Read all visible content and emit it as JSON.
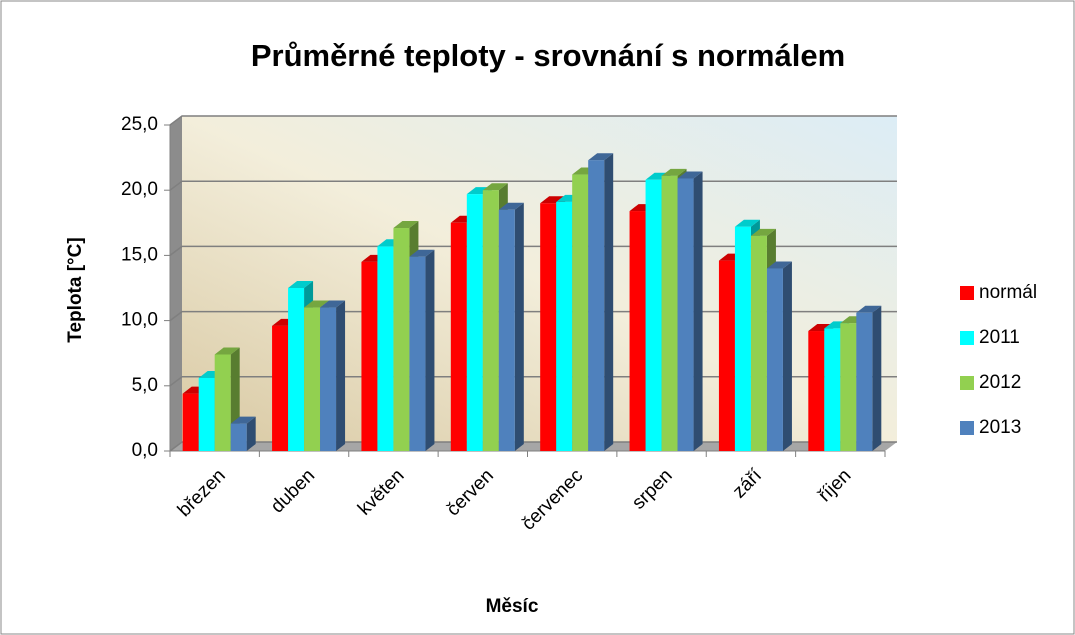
{
  "chart_data": {
    "type": "bar",
    "title": "Průměrné teploty - srovnání s normálem",
    "xlabel": "Měsíc",
    "ylabel": "Teplota [°C]",
    "categories": [
      "březen",
      "duben",
      "květen",
      "červen",
      "červenec",
      "srpen",
      "září",
      "říjen"
    ],
    "series": [
      {
        "name": "normál",
        "color": "#ff0000",
        "values": [
          4.4,
          9.6,
          14.5,
          17.5,
          19.0,
          18.4,
          14.6,
          9.2
        ]
      },
      {
        "name": "2011",
        "color": "#00ffff",
        "values": [
          5.6,
          12.5,
          15.7,
          19.7,
          19.1,
          20.8,
          17.2,
          9.4
        ]
      },
      {
        "name": "2012",
        "color": "#92d050",
        "values": [
          7.4,
          11.0,
          17.1,
          20.0,
          21.2,
          21.1,
          16.5,
          9.8
        ]
      },
      {
        "name": "2013",
        "color": "#4f81bd",
        "values": [
          2.1,
          11.0,
          14.9,
          18.5,
          22.3,
          20.9,
          14.0,
          10.6
        ]
      }
    ],
    "ylim": [
      0,
      25
    ],
    "yticks": [
      {
        "value": 0,
        "label": "0,0"
      },
      {
        "value": 5,
        "label": "5,0"
      },
      {
        "value": 10,
        "label": "10,0"
      },
      {
        "value": 15,
        "label": "15,0"
      },
      {
        "value": 20,
        "label": "20,0"
      },
      {
        "value": 25,
        "label": "25,0"
      }
    ],
    "grid": true,
    "legend": "right"
  }
}
